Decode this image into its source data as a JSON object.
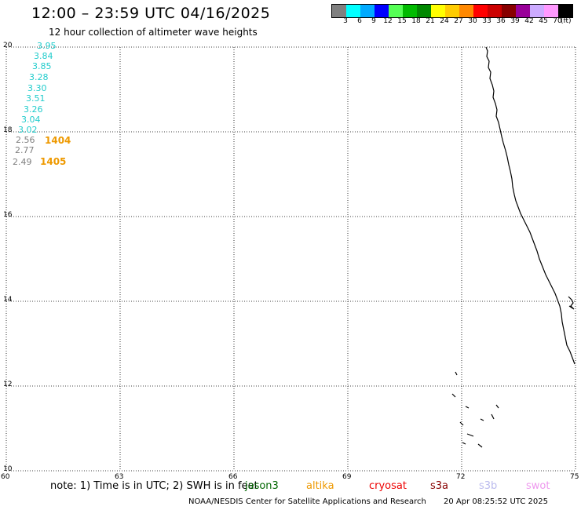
{
  "header": {
    "title": "12:00 – 23:59 UTC 04/16/2025",
    "subtitle": "12 hour collection of altimeter wave heights"
  },
  "scale": {
    "colors": [
      "#808080",
      "#00ffff",
      "#00aaff",
      "#0000ff",
      "#55ff55",
      "#00bb00",
      "#008800",
      "#ffff00",
      "#ffcc00",
      "#ff8800",
      "#ff0000",
      "#cc0000",
      "#880000",
      "#990099",
      "#ccaaff",
      "#ff99ff",
      "#000000"
    ],
    "labels": [
      "3",
      "6",
      "9",
      "12",
      "15",
      "18",
      "21",
      "24",
      "27",
      "30",
      "33",
      "36",
      "39",
      "42",
      "45",
      "70"
    ],
    "unit": "(ft)"
  },
  "map": {
    "lat_ticks": [
      "20",
      "18",
      "16",
      "14",
      "12",
      "10"
    ],
    "lon_ticks": [
      "60",
      "63",
      "66",
      "69",
      "72",
      "75"
    ]
  },
  "wave_heights": [
    {
      "value": "3.95",
      "color": "#22cccc"
    },
    {
      "value": "3.84",
      "color": "#22cccc"
    },
    {
      "value": "3.85",
      "color": "#22cccc"
    },
    {
      "value": "3.28",
      "color": "#22cccc"
    },
    {
      "value": "3.30",
      "color": "#22cccc"
    },
    {
      "value": "3.51",
      "color": "#22cccc"
    },
    {
      "value": "3.26",
      "color": "#22cccc"
    },
    {
      "value": "3.04",
      "color": "#22cccc"
    },
    {
      "value": "3.02",
      "color": "#22cccc"
    },
    {
      "value": "2.56",
      "color": "#808080"
    },
    {
      "value": "2.77",
      "color": "#808080"
    },
    {
      "value": "2.49",
      "color": "#808080"
    }
  ],
  "pass_labels": [
    {
      "value": "1404",
      "color": "#ee9900"
    },
    {
      "value": "1405",
      "color": "#ee9900"
    }
  ],
  "note": "note: 1) Time is in UTC; 2) SWH is in feet",
  "satellites": [
    {
      "name": "jason3",
      "color": "#006600"
    },
    {
      "name": "altika",
      "color": "#ee9900"
    },
    {
      "name": "cryosat",
      "color": "#ee0000"
    },
    {
      "name": "s3a",
      "color": "#880000"
    },
    {
      "name": "s3b",
      "color": "#bbbbee"
    },
    {
      "name": "swot",
      "color": "#ee99ee"
    }
  ],
  "footer": {
    "org": "NOAA/NESDIS Center for Satellite Applications and Research",
    "timestamp": "20 Apr 08:25:52 UTC 2025"
  }
}
